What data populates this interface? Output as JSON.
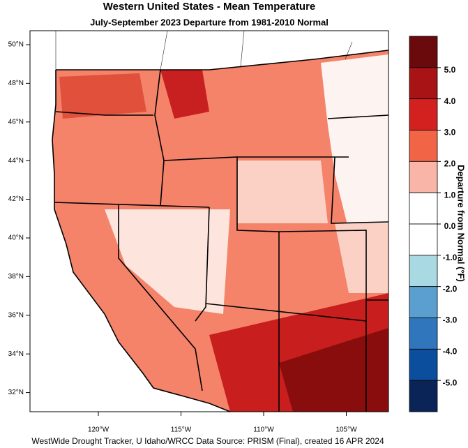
{
  "title": "Western United States - Mean Temperature",
  "subtitle": "July-September 2023  Departure from 1981-2010 Normal",
  "lat_labels": [
    "50°N",
    "48°N",
    "46°N",
    "44°N",
    "42°N",
    "40°N",
    "38°N",
    "36°N",
    "34°N",
    "32°N"
  ],
  "lon_labels": [
    "120°W",
    "115°W",
    "110°W",
    "105°W"
  ],
  "colorbar": {
    "label": "Departure from Normal (°F)",
    "lim": [
      -6,
      6
    ],
    "ticks": [
      {
        "value": 5,
        "label": "5.0"
      },
      {
        "value": 4,
        "label": "4.0"
      },
      {
        "value": 3,
        "label": "3.0"
      },
      {
        "value": 2,
        "label": "2.0"
      },
      {
        "value": 1,
        "label": "1.0"
      },
      {
        "value": 0,
        "label": "0.0"
      },
      {
        "value": -1,
        "label": "-1.0"
      },
      {
        "value": -2,
        "label": "-2.0"
      },
      {
        "value": -3,
        "label": "-3.0"
      },
      {
        "value": -4,
        "label": "-4.0"
      },
      {
        "value": -5,
        "label": "-5.0"
      }
    ],
    "colors": [
      "#6a0a0c",
      "#a81416",
      "#d3211f",
      "#f26446",
      "#f9b6a8",
      "#ffffff",
      "#ffffff",
      "#a9d9e2",
      "#5a9fd0",
      "#2f76bd",
      "#0c4e9e",
      "#0a2457"
    ]
  },
  "footer": "WestWide Drought Tracker, U Idaho/WRCC Data Source: PRISM (Final), created 16 APR 2024"
}
